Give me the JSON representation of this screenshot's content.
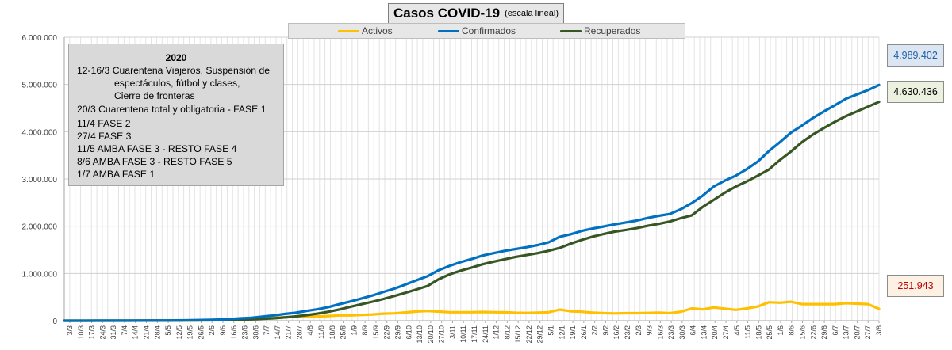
{
  "title": {
    "main": "Casos  COVID-19",
    "sub": "(escala lineal)"
  },
  "legend": [
    {
      "label": "Activos",
      "color": "#ffc000"
    },
    {
      "label": "Confirmados",
      "color": "#0070c0"
    },
    {
      "label": "Recuperados",
      "color": "#375623"
    }
  ],
  "annotation": {
    "title": "2020",
    "lines": [
      "12-16/3  Cuarentena Viajeros, Suspensión de",
      "espectáculos, fútbol y clases,",
      "Cierre de fronteras",
      "20/3 Cuarentena total y obligatoria - FASE 1",
      "11/4 FASE 2",
      "27/4 FASE 3",
      "11/5 AMBA FASE 3  - RESTO FASE 4",
      "8/6 AMBA FASE 3  - RESTO FASE 5",
      "1/7 AMBA FASE 1"
    ]
  },
  "value_boxes": {
    "confirmados": {
      "text": "4.989.402",
      "color": "#1f5fa8",
      "bg": "#dce6f2"
    },
    "recuperados": {
      "text": "4.630.436",
      "color": "#000000",
      "bg": "#ebf1de"
    },
    "activos": {
      "text": "251.943",
      "color": "#c00000",
      "bg": "#fdf1e4"
    }
  },
  "chart_data": {
    "type": "line",
    "title": "Casos  COVID-19",
    "subtitle": "(escala lineal)",
    "ylim": [
      0,
      6000000
    ],
    "y_ticks": [
      "0",
      "1.000.000",
      "2.000.000",
      "3.000.000",
      "4.000.000",
      "5.000.000",
      "6.000.000"
    ],
    "grid": true,
    "legend_position": "top",
    "x_tick_labels": [
      "3/3",
      "10/3",
      "17/3",
      "24/3",
      "31/3",
      "7/4",
      "14/4",
      "21/4",
      "28/4",
      "5/5",
      "12/5",
      "19/5",
      "26/5",
      "2/6",
      "9/6",
      "16/6",
      "23/6",
      "30/6",
      "7/7",
      "14/7",
      "21/7",
      "28/7",
      "4/8",
      "11/8",
      "18/8",
      "25/8",
      "1/9",
      "8/9",
      "15/9",
      "22/9",
      "29/9",
      "6/10",
      "13/10",
      "20/10",
      "27/10",
      "3/11",
      "10/11",
      "17/11",
      "24/11",
      "1/12",
      "8/12",
      "15/12",
      "22/12",
      "29/12",
      "5/1",
      "12/1",
      "19/1",
      "26/1",
      "2/2",
      "9/2",
      "16/2",
      "23/2",
      "2/3",
      "9/3",
      "16/3",
      "23/3",
      "30/3",
      "6/4",
      "13/4",
      "20/4",
      "27/4",
      "4/5",
      "11/5",
      "18/5",
      "25/5",
      "1/6",
      "8/6",
      "15/6",
      "22/6",
      "29/6",
      "6/7",
      "13/7",
      "20/7",
      "27/7",
      "3/8"
    ],
    "series": [
      {
        "name": "Confirmados",
        "color": "#0070c0",
        "values": [
          0,
          100,
          400,
          1100,
          1000,
          1800,
          2500,
          3300,
          4200,
          5300,
          6900,
          8800,
          12600,
          17400,
          22800,
          34100,
          49800,
          62300,
          87000,
          111000,
          141900,
          167400,
          206700,
          241000,
          289000,
          350000,
          408000,
          471000,
          535000,
          610000,
          680000,
          766000,
          856000,
          942000,
          1070000,
          1160000,
          1240000,
          1305000,
          1380000,
          1430000,
          1478000,
          1517000,
          1555000,
          1600000,
          1660000,
          1775000,
          1830000,
          1900000,
          1950000,
          1995000,
          2040000,
          2080000,
          2120000,
          2175000,
          2220000,
          2260000,
          2360000,
          2490000,
          2650000,
          2840000,
          2965000,
          3070000,
          3210000,
          3370000,
          3590000,
          3780000,
          3980000,
          4130000,
          4290000,
          4430000,
          4560000,
          4700000,
          4790000,
          4880000,
          4989402
        ]
      },
      {
        "name": "Recuperados",
        "color": "#375623",
        "values": [
          0,
          50,
          150,
          400,
          300,
          500,
          800,
          1200,
          1800,
          2500,
          3400,
          4600,
          6200,
          8200,
          11000,
          15000,
          21000,
          28000,
          38000,
          51000,
          69000,
          91000,
          118000,
          150000,
          190000,
          238000,
          295000,
          348000,
          402000,
          461000,
          524000,
          592000,
          662000,
          736000,
          878000,
          980000,
          1060000,
          1125000,
          1195000,
          1250000,
          1300000,
          1350000,
          1390000,
          1430000,
          1480000,
          1540000,
          1630000,
          1710000,
          1780000,
          1835000,
          1885000,
          1920000,
          1960000,
          2010000,
          2050000,
          2100000,
          2170000,
          2230000,
          2410000,
          2560000,
          2710000,
          2840000,
          2950000,
          3070000,
          3200000,
          3400000,
          3580000,
          3780000,
          3940000,
          4080000,
          4210000,
          4330000,
          4430000,
          4530000,
          4630436
        ]
      },
      {
        "name": "Activos",
        "color": "#ffc000",
        "values": [
          0,
          50,
          250,
          700,
          700,
          1300,
          1700,
          2100,
          2400,
          2800,
          3500,
          4200,
          6400,
          9200,
          11800,
          19100,
          28800,
          34300,
          49000,
          60000,
          72900,
          76400,
          88700,
          91000,
          99000,
          112000,
          113000,
          123000,
          133000,
          149000,
          156000,
          174000,
          194000,
          206000,
          192000,
          180000,
          180000,
          180000,
          185000,
          180000,
          178000,
          167000,
          165000,
          170000,
          180000,
          235000,
          200000,
          190000,
          170000,
          160000,
          155000,
          160000,
          160000,
          165000,
          170000,
          160000,
          190000,
          260000,
          240000,
          280000,
          255000,
          230000,
          260000,
          300000,
          390000,
          380000,
          400000,
          350000,
          350000,
          350000,
          350000,
          370000,
          360000,
          350000,
          251943
        ]
      }
    ]
  }
}
